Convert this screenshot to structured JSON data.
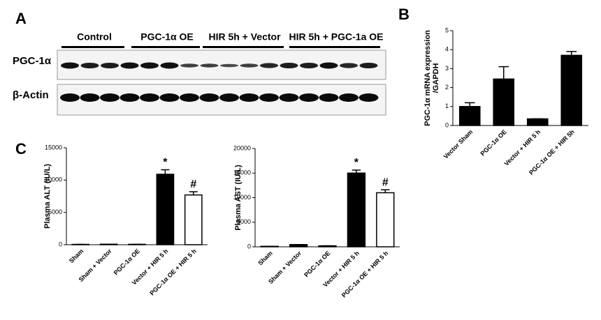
{
  "panel_labels": [
    "A",
    "B",
    "C"
  ],
  "blot": {
    "groups": [
      "Control",
      "PGC-1α OE",
      "HIR 5h + Vector",
      "HIR 5h + PGC-1a OE"
    ],
    "rows": [
      "PGC-1α",
      "β-Actin"
    ]
  },
  "chart_data": [
    {
      "type": "bar",
      "ylabel": [
        "PGC-1α mRNA expression",
        "/GAPDH"
      ],
      "categories": [
        "Vector Sham",
        "PGC-1α OE",
        "Vector + HIR 5 h",
        "PGC-1α OE + HIR 5h"
      ],
      "values": [
        1.0,
        2.45,
        0.35,
        3.7
      ],
      "errors": [
        0.2,
        0.65,
        0,
        0.2
      ],
      "colors": [
        "#000000",
        "#000000",
        "#000000",
        "#000000"
      ],
      "ylim": [
        0,
        5
      ],
      "yticks": [
        0,
        1,
        2,
        3,
        4,
        5
      ]
    },
    {
      "type": "bar",
      "ylabel": "Plasma ALT (IU/L)",
      "categories": [
        "Sham",
        "Sham + Vector",
        "PGC-1α OE",
        "Vector + HIR 5 h",
        "PGC-1α OE + HIR 5 h"
      ],
      "values": [
        50,
        80,
        60,
        10900,
        7700
      ],
      "errors": [
        0,
        0,
        0,
        700,
        500
      ],
      "colors": [
        "#000000",
        "#000000",
        "#000000",
        "#000000",
        "#ffffff"
      ],
      "markers": [
        null,
        null,
        null,
        "*",
        "#"
      ],
      "ylim": [
        0,
        15000
      ],
      "yticks": [
        0,
        5000,
        10000,
        15000
      ]
    },
    {
      "type": "bar",
      "ylabel": "Plasma AST (IU/L)",
      "categories": [
        "Sham",
        "Sham + Vector",
        "PGC-1α OE",
        "Vector + HIR 5 h",
        "PGC-1α OE + HIR 5 h"
      ],
      "values": [
        100,
        450,
        200,
        15000,
        11000
      ],
      "errors": [
        0,
        0,
        0,
        600,
        600
      ],
      "colors": [
        "#000000",
        "#000000",
        "#000000",
        "#000000",
        "#ffffff"
      ],
      "markers": [
        null,
        null,
        null,
        "*",
        "#"
      ],
      "ylim": [
        0,
        20000
      ],
      "yticks": [
        0,
        5000,
        10000,
        15000,
        20000
      ]
    }
  ]
}
